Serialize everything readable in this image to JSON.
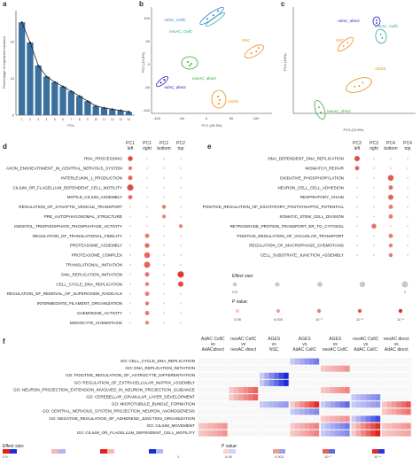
{
  "panels": {
    "a": {
      "letter": "a",
      "ylabel": "Percentage of explained variance",
      "xlabel": "PCs",
      "yticks": [
        "20",
        "10",
        "0"
      ],
      "chart_data": {
        "type": "bar",
        "categories": [
          "1",
          "2",
          "3",
          "4",
          "5",
          "6",
          "7",
          "8",
          "9",
          "10",
          "11",
          "12",
          "13",
          "14"
        ],
        "values": [
          25.3,
          19.8,
          13.5,
          10.5,
          9.0,
          7.8,
          6.5,
          5.2,
          3.8,
          2.5,
          2.0,
          1.6,
          1.3,
          0.9
        ],
        "ylim": [
          0,
          28
        ]
      }
    },
    "b": {
      "letter": "b",
      "xlabel": "PC1 (25.3%)",
      "ylabel": "PC2 (19.8%)",
      "xticks": [
        "-100",
        "-50",
        "0",
        "50",
        "100"
      ],
      "yticks": [
        "100",
        "50",
        "0",
        "-50",
        "-100"
      ],
      "groups": [
        {
          "label": "AdAC_CellC",
          "color": "#2a7fd4"
        },
        {
          "label": "neoAC_CellC",
          "color": "#2aa8a0"
        },
        {
          "label": "NSC",
          "color": "#f08a1c"
        },
        {
          "label": "AdAC_direct",
          "color": "#2020b8"
        },
        {
          "label": "neoAC_direct",
          "color": "#3aa83a"
        },
        {
          "label": "AGES",
          "color": "#e88a10"
        }
      ]
    },
    "c": {
      "letter": "c",
      "xlabel": "PC3 (13.5%)",
      "ylabel": "PC4 (10%)",
      "groups": [
        {
          "label": "AdAC_direct",
          "color": "#2020b8"
        },
        {
          "label": "neoAC_CellC",
          "color": "#2aa8a0"
        },
        {
          "label": "NSC",
          "color": "#f08a1c"
        },
        {
          "label": "AGES",
          "color": "#e88a10"
        },
        {
          "label": "neoAC_direct",
          "color": "#3aa83a"
        }
      ]
    },
    "d": {
      "letter": "d",
      "columns": [
        {
          "top": "PC1",
          "bottom": "left"
        },
        {
          "top": "PC1",
          "bottom": "right"
        },
        {
          "top": "PC2",
          "bottom": "bottom"
        },
        {
          "top": "PC2",
          "bottom": "top"
        }
      ],
      "rows": [
        {
          "label": "RNA_PROCESSING",
          "dots": [
            [
              0,
              0.6,
              0.8
            ]
          ]
        },
        {
          "label": "AXON_ENSHEATHMENT_IN_CENTRAL_NERVOUS_SYSTEM",
          "dots": [
            [
              0,
              0.4,
              0.4
            ]
          ]
        },
        {
          "label": "INTERLEUKIN_1_PRODUCTION",
          "dots": [
            [
              0,
              0.5,
              0.6
            ]
          ]
        },
        {
          "label": "CILIUM_OR_FLAGELLUM_DEPENDENT_CELL_MOTILITY",
          "dots": [
            [
              0,
              0.9,
              0.8
            ]
          ]
        },
        {
          "label": "MOTILE_CILIUM_ASSEMBLY",
          "dots": [
            [
              0,
              0.5,
              0.5
            ]
          ]
        },
        {
          "label": "REGULATION_OF_SYNAPTIC_VESICLE_TRANSPORT",
          "dots": [
            [
              2,
              0.4,
              0.4
            ]
          ]
        },
        {
          "label": "PRE_AUTOPHAGOSOMAL_STRUCTURE",
          "dots": [
            [
              2,
              0.4,
              0.3
            ]
          ]
        },
        {
          "label": "INOSITOL_TRISPHOSPHATE_PHOSPHATASE_ACTIVITY",
          "dots": [
            [
              3,
              0.4,
              0.3
            ]
          ]
        },
        {
          "label": "REGULATION_OF_TRANSLATIONAL_FIDELITY",
          "dots": [
            [
              1,
              0.5,
              0.4
            ]
          ]
        },
        {
          "label": "PROTEASOME_ASSEMBLY",
          "dots": [
            [
              1,
              0.6,
              0.5
            ]
          ]
        },
        {
          "label": "PROTEASOME_COMPLEX",
          "dots": [
            [
              1,
              0.8,
              0.6
            ]
          ]
        },
        {
          "label": "TRANSLATIONAL_INITIATION",
          "dots": [
            [
              1,
              0.9,
              0.6
            ]
          ]
        },
        {
          "label": "DNA_REPLICATION_INITIATION",
          "dots": [
            [
              1,
              0.5,
              0.5
            ],
            [
              3,
              0.9,
              1.0
            ]
          ]
        },
        {
          "label": "CELL_CYCLE_DNA_REPLICATION",
          "dots": [
            [
              1,
              0.4,
              0.4
            ],
            [
              3,
              0.7,
              0.8
            ]
          ]
        },
        {
          "label": "REGULATION_OF_REMOVAL_OF_SUPEROXIDE_RADICALS",
          "dots": [
            [
              1,
              0.5,
              0.4
            ]
          ]
        },
        {
          "label": "INTERMEDIATE_FILAMENT_ORGANIZATION",
          "dots": [
            [
              1,
              0.4,
              0.4
            ]
          ]
        },
        {
          "label": "CHEMOKINE_ACTIVITY",
          "dots": [
            [
              1,
              0.5,
              0.4
            ]
          ]
        },
        {
          "label": "MONOCYTE_CHEMOTAXIS",
          "dots": [
            [
              1,
              0.4,
              0.3
            ]
          ]
        }
      ]
    },
    "e": {
      "letter": "e",
      "columns": [
        {
          "top": "PC3",
          "bottom": "left"
        },
        {
          "top": "PC3",
          "bottom": "right"
        },
        {
          "top": "PC4",
          "bottom": "bottom"
        },
        {
          "top": "PC4",
          "bottom": "top"
        }
      ],
      "rows": [
        {
          "label": "DNA_DEPENDENT_DNA_REPLICATION",
          "dots": [
            [
              0,
              0.7,
              0.8
            ]
          ]
        },
        {
          "label": "MISMATCH_REPAIR",
          "dots": [
            [
              0,
              0.5,
              0.6
            ]
          ]
        },
        {
          "label": "OXIDATIVE_PHOSPHORYLATION",
          "dots": [
            [
              2,
              0.8,
              0.7
            ]
          ]
        },
        {
          "label": "NEURON_CELL_CELL_ADHESION",
          "dots": [
            [
              2,
              0.5,
              0.5
            ]
          ]
        },
        {
          "label": "RESPIRATORY_CHAIN",
          "dots": [
            [
              2,
              0.7,
              0.6
            ]
          ]
        },
        {
          "label": "POSITIVE_REGULATION_OF_EXCITATORY_POSTSYNAPTIC_POTENTIAL",
          "dots": [
            [
              2,
              0.5,
              0.4
            ]
          ]
        },
        {
          "label": "SOMATIC_STEM_CELL_DIVISION",
          "dots": [
            [
              2,
              0.5,
              0.4
            ]
          ]
        },
        {
          "label": "RETROGRADE_PROTEIN_TRANSPORT_ER_TO_CYTOSOL",
          "dots": [
            [
              1,
              0.6,
              0.5
            ]
          ]
        },
        {
          "label": "POSITIVE_REGULATION_OF_VACUOLAR_TRANSPORT",
          "dots": [
            [
              2,
              0.5,
              0.4
            ]
          ]
        },
        {
          "label": "REGULATION_OF_MACROPHAGE_CHEMOTAXIS",
          "dots": [
            [
              2,
              0.4,
              0.4
            ]
          ]
        },
        {
          "label": "CELL_SUBSTRATE_JUNCTION_ASSEMBLY",
          "dots": [
            [
              2,
              0.4,
              0.4
            ]
          ]
        }
      ],
      "effect_legend": {
        "title": "Effect size:",
        "min": "0.5",
        "max": "1"
      },
      "pvalue_legend": {
        "title": "P value:",
        "ticks": [
          "0.05",
          "0.003",
          "10⁻²",
          "10⁻³",
          "10⁻⁴"
        ]
      }
    },
    "f": {
      "letter": "f",
      "columns": [
        {
          "top": "AdAC CellC",
          "mid": "vs",
          "bottom": "AdACdirect"
        },
        {
          "top": "neoAC CellC",
          "mid": "vs",
          "bottom": "neoAC direct"
        },
        {
          "top": "AGES",
          "mid": "vs",
          "bottom": "NSC"
        },
        {
          "top": "AGES",
          "mid": "vs",
          "bottom": "AdAC CellC"
        },
        {
          "top": "AGES",
          "mid": "vs",
          "bottom": "neoAC CellC"
        },
        {
          "top": "neoAC CellC",
          "mid": "vs",
          "bottom": "AdAC CellC"
        },
        {
          "top": "neoAC direct",
          "mid": "vs",
          "bottom": "AdAC direct"
        }
      ],
      "rows": [
        "GO: CELL_CYCLE_DNA_REPLICATION",
        "GO: DNA_REPLICATION_INITIATION",
        "GO: POSITIVE_REGULATION_OF_ASTROCYTE_DIFFERENTIATION",
        "GO: REGULATION_OF_EXTRACELLULAR_MATRIX_ASSEMBLY",
        "GO: NEURON_PROJECTION_EXTENSION_INVOLVED_IN_NEURON_PROJECTION_GUIDANCE",
        "GO: CEREBELLAR_GRANULAR_LAYER_DEVELOPMENT",
        "GO: MICROTUBULE_BUNDLE_FORMATION",
        "GO: CENTRAL_NERVOUS_SYSTEM_PROJECTION_NEURON_AXONOGENESIS",
        "GO: NEGATIVE_REGULATION_OF_ADHERENS_JUNCTION_ORGANIZATION",
        "GO: CILIUM_MOVEMENT",
        "GO: CILIUM_OR_FLAGELLUM_DEPENDENT_CELL_MOTILITY"
      ],
      "cells": [
        [
          0,
          0,
          0,
          -0.5,
          0,
          0,
          0
        ],
        [
          0,
          0,
          0,
          0,
          0.3,
          0,
          0
        ],
        [
          0,
          0,
          -1,
          0,
          0,
          0,
          0
        ],
        [
          0,
          0,
          -1,
          0,
          0,
          0,
          0
        ],
        [
          0,
          0.6,
          0,
          0,
          0.4,
          0,
          0
        ],
        [
          0,
          0.6,
          0,
          0,
          0,
          -0.4,
          0
        ],
        [
          0,
          0,
          -0.3,
          0.9,
          -0.6,
          -0.3,
          0.7
        ],
        [
          0,
          0,
          0,
          -0.4,
          0,
          0,
          0.5
        ],
        [
          0,
          0,
          0,
          0,
          0.3,
          -0.8,
          0
        ],
        [
          0.3,
          0,
          0,
          0.4,
          -0.5,
          0.9,
          0.3
        ],
        [
          0.3,
          0,
          0,
          0.4,
          -0.4,
          1,
          0.2
        ]
      ],
      "effect_legend": {
        "title": "Effect size:",
        "ticks": [
          "0.5",
          "1"
        ]
      },
      "pvalue_legend": {
        "title": "P value:",
        "ticks": [
          "0.05",
          "0.003",
          "10⁻²",
          "10⁻⁴"
        ]
      },
      "colors": {
        "pos": "#e0201c",
        "neg": "#1c2ad8",
        "light_pos": "#f4b8b0",
        "light_neg": "#b0b8f0"
      }
    }
  }
}
